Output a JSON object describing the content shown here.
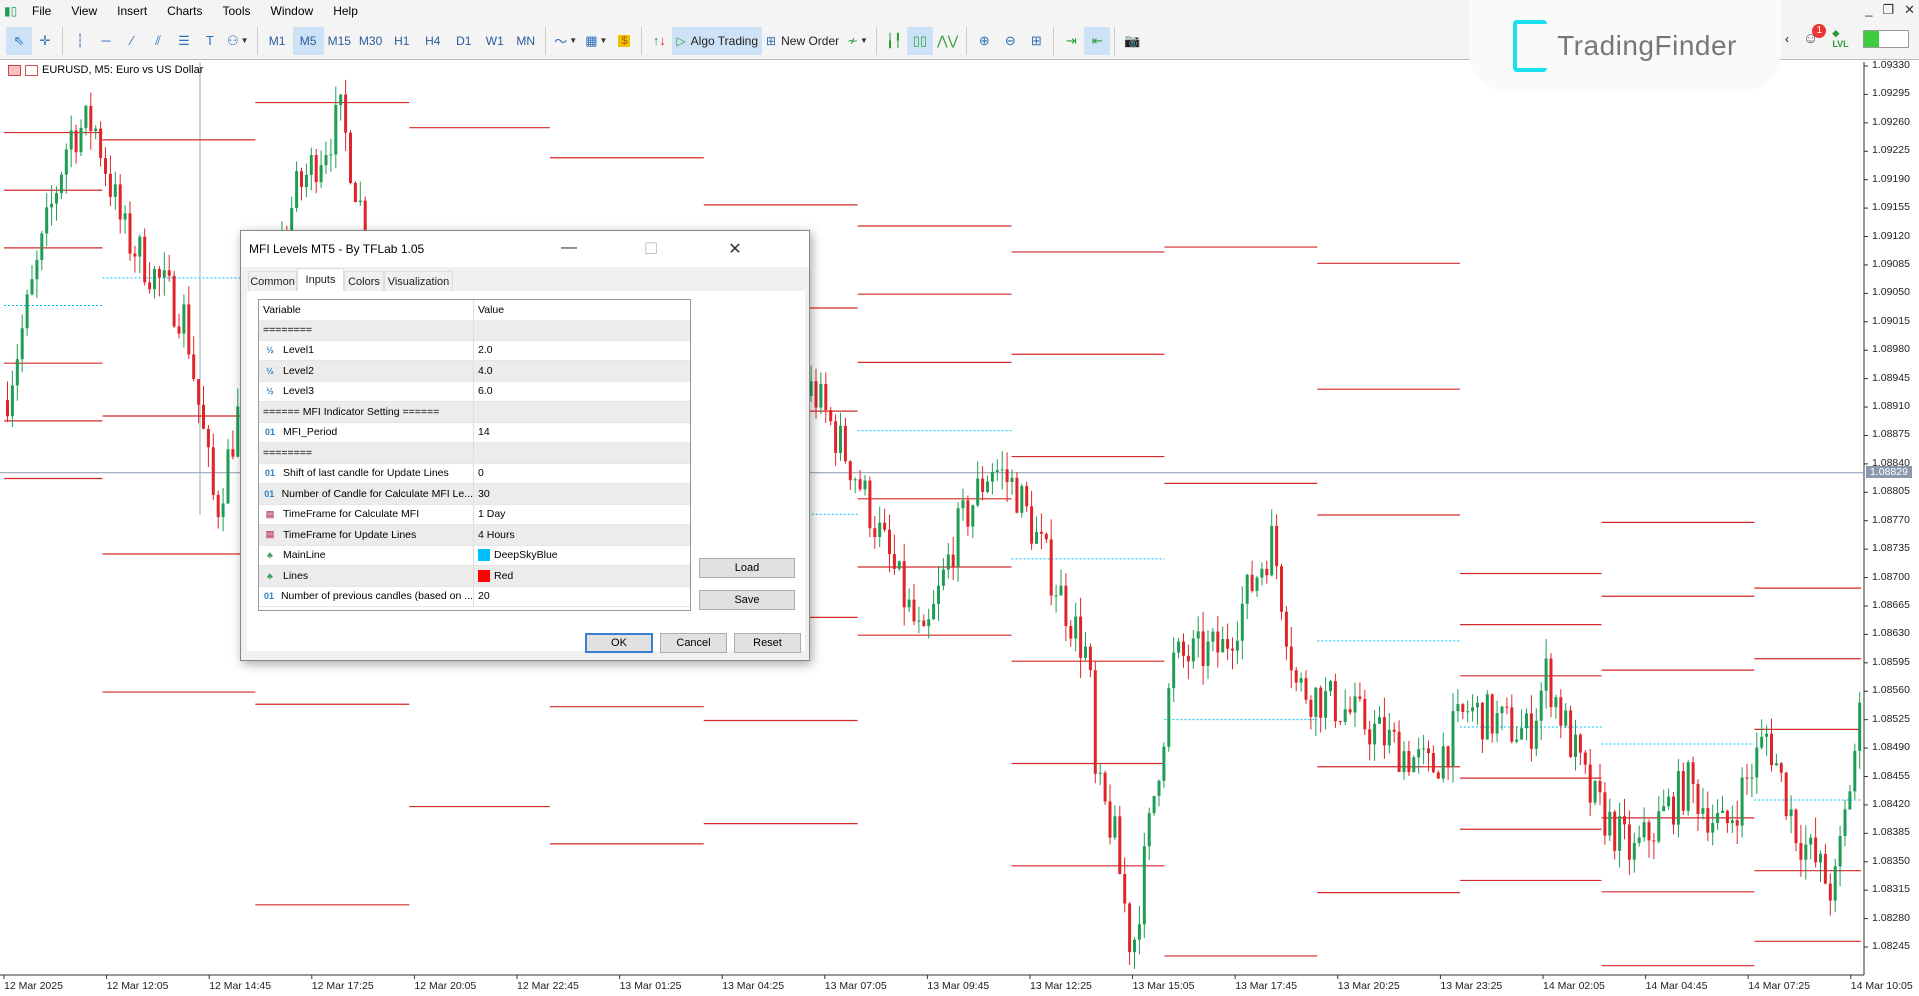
{
  "menu": {
    "items": [
      "File",
      "View",
      "Insert",
      "Charts",
      "Tools",
      "Window",
      "Help"
    ]
  },
  "toolbar": {
    "draw_tools": [
      "cursor-icon",
      "crosshair-icon",
      "vertical-line-icon",
      "horizontal-line-icon",
      "trendline-icon",
      "channel-icon",
      "fibonacci-icon",
      "text-icon",
      "shapes-icon"
    ],
    "timeframes": [
      "M1",
      "M5",
      "M15",
      "M30",
      "H1",
      "H4",
      "D1",
      "W1",
      "MN"
    ],
    "active_timeframe": "M5",
    "algo_trading_label": "Algo Trading",
    "new_order_label": "New Order",
    "notification_count": "1",
    "lvl_label": "LVL",
    "balance_fill_percent": 35
  },
  "logo": {
    "text": "TradingFinder"
  },
  "chart": {
    "title": "EURUSD, M5:  Euro vs US Dollar",
    "current_price": "1.08829",
    "price_ticks": [
      "1.09330",
      "1.09295",
      "1.09260",
      "1.09225",
      "1.09190",
      "1.09155",
      "1.09120",
      "1.09085",
      "1.09050",
      "1.09015",
      "1.08980",
      "1.08945",
      "1.08910",
      "1.08875",
      "1.08840",
      "1.08805",
      "1.08770",
      "1.08735",
      "1.08700",
      "1.08665",
      "1.08630",
      "1.08595",
      "1.08560",
      "1.08525",
      "1.08490",
      "1.08455",
      "1.08420",
      "1.08385",
      "1.08350",
      "1.08315",
      "1.08280",
      "1.08245"
    ],
    "time_labels": [
      "12 Mar 2025",
      "12 Mar 12:05",
      "12 Mar 14:45",
      "12 Mar 17:25",
      "12 Mar 20:05",
      "12 Mar 22:45",
      "13 Mar 01:25",
      "13 Mar 04:25",
      "13 Mar 07:05",
      "13 Mar 09:45",
      "13 Mar 12:25",
      "13 Mar 15:05",
      "13 Mar 17:45",
      "13 Mar 20:25",
      "13 Mar 23:25",
      "14 Mar 02:05",
      "14 Mar 04:45",
      "14 Mar 07:25",
      "14 Mar 10:05"
    ],
    "colors": {
      "up": "#1f9d55",
      "down": "#e0252a",
      "level_line": "#d42a2a",
      "main_line": "#00bfff"
    },
    "price_path": [
      [
        0.02,
        1.08929
      ],
      [
        0.62,
        1.09246
      ],
      [
        0.86,
        1.09261
      ],
      [
        1.15,
        1.09125
      ],
      [
        1.75,
        1.0902
      ],
      [
        2.05,
        1.08778
      ],
      [
        2.29,
        1.08914
      ],
      [
        2.82,
        1.0917
      ],
      [
        3.27,
        1.09268
      ],
      [
        3.54,
        1.0911
      ],
      [
        4.73,
        1.0902
      ],
      [
        6.5,
        1.08959
      ],
      [
        7.88,
        1.08929
      ],
      [
        8.3,
        1.08824
      ],
      [
        8.95,
        1.08613
      ],
      [
        9.25,
        1.08748
      ],
      [
        9.61,
        1.08839
      ],
      [
        9.85,
        1.08809
      ],
      [
        10.2,
        1.08703
      ],
      [
        10.56,
        1.08598
      ],
      [
        10.62,
        1.08447
      ],
      [
        10.8,
        1.08387
      ],
      [
        10.98,
        1.08236
      ],
      [
        11.21,
        1.08447
      ],
      [
        11.39,
        1.08598
      ],
      [
        11.87,
        1.08613
      ],
      [
        12.35,
        1.08748
      ],
      [
        12.58,
        1.08567
      ],
      [
        13.06,
        1.08537
      ],
      [
        13.89,
        1.08462
      ],
      [
        14.25,
        1.08537
      ],
      [
        14.85,
        1.08507
      ],
      [
        15.02,
        1.08583
      ],
      [
        15.44,
        1.08432
      ],
      [
        15.86,
        1.08357
      ],
      [
        16.39,
        1.08447
      ],
      [
        16.75,
        1.08387
      ],
      [
        17.17,
        1.08507
      ],
      [
        17.46,
        1.08387
      ],
      [
        17.82,
        1.08311
      ],
      [
        18.1,
        1.08552
      ]
    ],
    "level_blocks": [
      [
        0,
        0.96,
        1.09035,
        0.00071
      ],
      [
        0.96,
        2.45,
        1.09069,
        0.0017
      ],
      [
        2.45,
        3.95,
        1.08791,
        0.00247
      ],
      [
        3.95,
        5.32,
        1.08836,
        0.00209
      ],
      [
        5.32,
        6.82,
        1.08879,
        0.00169
      ],
      [
        6.82,
        8.32,
        1.08778,
        0.00127
      ],
      [
        8.32,
        9.82,
        1.08881,
        0.00084
      ],
      [
        9.82,
        11.31,
        1.08723,
        0.00126
      ],
      [
        11.31,
        12.8,
        1.08525,
        0.00291
      ],
      [
        12.8,
        14.19,
        1.08622,
        0.00155
      ],
      [
        14.19,
        15.57,
        1.08516,
        0.00063
      ],
      [
        15.57,
        17.06,
        1.08495,
        0.00091
      ],
      [
        17.06,
        18.1,
        1.08426,
        0.00087
      ]
    ]
  },
  "dialog": {
    "title": "MFI Levels MT5 - By TFLab 1.05",
    "tabs": [
      "Common",
      "Inputs",
      "Colors",
      "Visualization"
    ],
    "active_tab": "Inputs",
    "headers": {
      "variable": "Variable",
      "value": "Value"
    },
    "rows": [
      {
        "icon": "",
        "variable": "========",
        "value": ""
      },
      {
        "icon": "fraction",
        "variable": "Level1",
        "value": "2.0"
      },
      {
        "icon": "fraction",
        "variable": "Level2",
        "value": "4.0"
      },
      {
        "icon": "fraction",
        "variable": "Level3",
        "value": "6.0"
      },
      {
        "icon": "",
        "variable": "====== MFI Indicator Setting ======",
        "value": ""
      },
      {
        "icon": "integer",
        "variable": "MFI_Period",
        "value": "14"
      },
      {
        "icon": "",
        "variable": "========",
        "value": ""
      },
      {
        "icon": "integer",
        "variable": "Shift of last candle for Update Lines",
        "value": "0"
      },
      {
        "icon": "integer",
        "variable": "Number of Candle for Calculate MFI Le...",
        "value": "30"
      },
      {
        "icon": "enum",
        "variable": "TimeFrame for Calculate MFI",
        "value": "1 Day"
      },
      {
        "icon": "enum",
        "variable": "TimeFrame for Update Lines",
        "value": "4 Hours"
      },
      {
        "icon": "color",
        "variable": "MainLine",
        "value": "DeepSkyBlue",
        "swatch": "#00bfff"
      },
      {
        "icon": "color",
        "variable": "Lines",
        "value": "Red",
        "swatch": "#ff0000"
      },
      {
        "icon": "integer",
        "variable": "Number of previous candles (based on ...",
        "value": "20"
      }
    ],
    "load_label": "Load",
    "save_label": "Save",
    "ok_label": "OK",
    "cancel_label": "Cancel",
    "reset_label": "Reset"
  }
}
